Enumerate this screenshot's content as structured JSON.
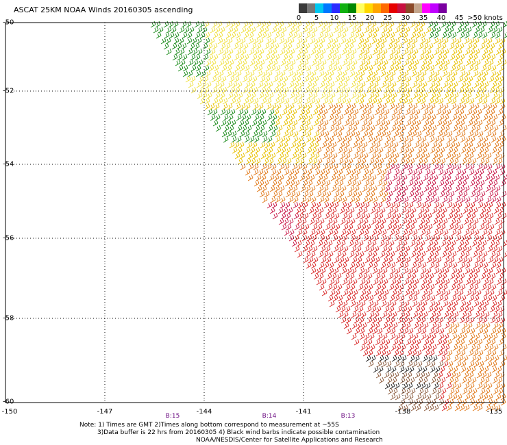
{
  "title": "ASCAT 25KM NOAA Winds 20160305 ascending",
  "legend": {
    "colors": [
      "#3a3a3a",
      "#777777",
      "#00c8f0",
      "#0078ff",
      "#2b2bff",
      "#10b010",
      "#008800",
      "#ffff60",
      "#ffd800",
      "#ffa500",
      "#ff6a00",
      "#e60000",
      "#c81040",
      "#8b4a2a",
      "#c4a58c",
      "#ff00ff",
      "#c000ff",
      "#7a00a0"
    ],
    "tick_labels": [
      "0",
      "5",
      "10",
      "15",
      "20",
      "25",
      "30",
      "35",
      "40",
      "45",
      ">50 knots"
    ]
  },
  "axes": {
    "lat_labels": [
      "-50",
      "-52",
      "-54",
      "-56",
      "-58",
      "-60"
    ],
    "lon_labels": [
      "-150",
      "-147",
      "-144",
      "-141",
      "-138",
      "-135"
    ]
  },
  "time_labels": [
    "B:15",
    "B:14",
    "B:13"
  ],
  "notes": [
    "Note: 1) Times are GMT 2)Times along bottom correspond to measurement at ~55S",
    "3)Data buffer is 22 hrs from 20160305 4) Black wind barbs indicate possible contamination",
    "NOAA/NESDIS/Center for Satellite Applications and Research"
  ],
  "wind_colors": {
    "green": "#1a8a1a",
    "yellow": "#f0e040",
    "gold": "#e8c000",
    "orange": "#e07818",
    "red": "#d82828",
    "crimson": "#c81848",
    "brown": "#8b5a3c",
    "black": "#222222"
  }
}
